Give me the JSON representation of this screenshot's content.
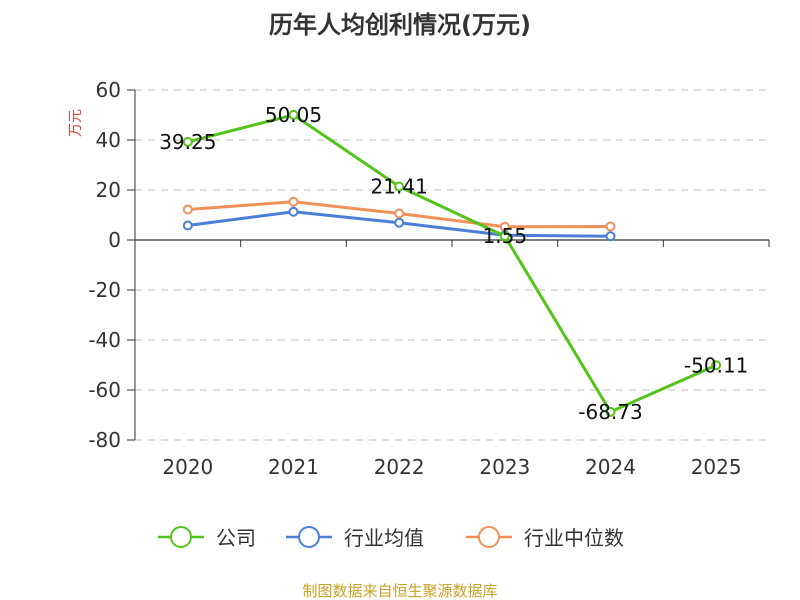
{
  "chart_data": {
    "type": "line",
    "title": "历年人均创利情况(万元)",
    "ylabel": "万元",
    "xlabel": "",
    "categories": [
      "2020",
      "2021",
      "2022",
      "2023",
      "2024",
      "2025"
    ],
    "ylim": [
      -80,
      60
    ],
    "yticks": [
      60,
      40,
      20,
      0,
      -20,
      -40,
      -60,
      -80
    ],
    "grid": true,
    "legend_position": "bottom",
    "series": [
      {
        "name": "公司",
        "color": "#52c41a",
        "values": [
          39.25,
          50.05,
          21.41,
          1.55,
          -68.73,
          -50.11
        ],
        "labels": [
          "39.25",
          "50.05",
          "21.41",
          "1.55",
          "-68.73",
          "-50.11"
        ]
      },
      {
        "name": "行业均值",
        "color": "#4a7fd8",
        "values": [
          5.8,
          11.3,
          6.9,
          1.9,
          1.5,
          null
        ]
      },
      {
        "name": "行业中位数",
        "color": "#f0915a",
        "values": [
          12.2,
          15.3,
          10.6,
          5.3,
          5.4,
          null
        ]
      }
    ],
    "source": "制图数据来自恒生聚源数据库"
  }
}
